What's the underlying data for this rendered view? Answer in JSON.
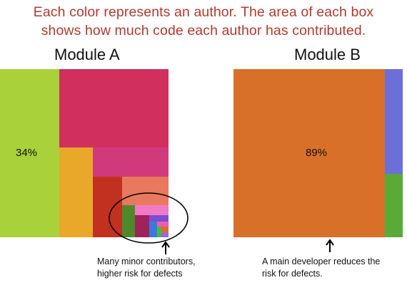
{
  "headline": {
    "line1": "Each color represents an author. The area of each box",
    "line2": "shows how much code each author has contributed."
  },
  "module_a": {
    "title": "Module A",
    "main_share_label": "34%",
    "annotation_line1": "Many minor contributors,",
    "annotation_line2": "higher risk for defects",
    "colors": [
      "#a8d13a",
      "#d1305e",
      "#eaa82a",
      "#d13a7a",
      "#c2301f",
      "#e8795e",
      "#4e8a2a",
      "#a0225a",
      "#f07ac8",
      "#7a4ed0",
      "#3a7ae0",
      "#f05ab0",
      "#49b84a"
    ]
  },
  "module_b": {
    "title": "Module B",
    "main_share_label": "89%",
    "annotation_line1": "A main developer reduces the",
    "annotation_line2": "risk for defects.",
    "colors": [
      "#d8702a",
      "#6c6fd8",
      "#5aaa3a"
    ]
  }
}
